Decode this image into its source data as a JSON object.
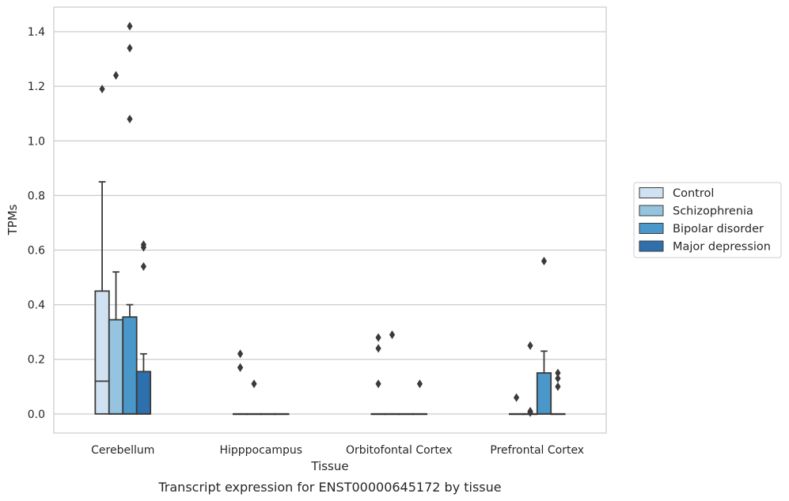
{
  "caption": "Transcript expression for ENST00000645172 by tissue",
  "chart_data": {
    "type": "box",
    "xlabel": "Tissue",
    "ylabel": "TPMs",
    "ylim": [
      -0.07,
      1.49
    ],
    "yticks": [
      0.0,
      0.2,
      0.4,
      0.6,
      0.8,
      1.0,
      1.2,
      1.4
    ],
    "ytick_labels": [
      "0.0",
      "0.2",
      "0.4",
      "0.6",
      "0.8",
      "1.0",
      "1.2",
      "1.4"
    ],
    "grid": true,
    "legend_position": "right",
    "categories": [
      "Cerebellum",
      "Hipppocampus",
      "Orbitofontal Cortex",
      "Prefrontal Cortex"
    ],
    "series": [
      {
        "name": "Control",
        "color": "#d0e1f2",
        "boxes": [
          {
            "q1": 0.0,
            "median": 0.12,
            "q3": 0.45,
            "whisker_low": 0.0,
            "whisker_high": 0.85,
            "outliers": [
              1.19
            ]
          },
          {
            "q1": 0.0,
            "median": 0.0,
            "q3": 0.0,
            "whisker_low": 0.0,
            "whisker_high": 0.0,
            "outliers": [
              0.22,
              0.17,
              0.17
            ]
          },
          {
            "q1": 0.0,
            "median": 0.0,
            "q3": 0.0,
            "whisker_low": 0.0,
            "whisker_high": 0.0,
            "outliers": [
              0.28,
              0.24,
              0.11
            ]
          },
          {
            "q1": 0.0,
            "median": 0.0,
            "q3": 0.0,
            "whisker_low": 0.0,
            "whisker_high": 0.0,
            "outliers": [
              0.06
            ]
          }
        ]
      },
      {
        "name": "Schizophrenia",
        "color": "#94c4df",
        "boxes": [
          {
            "q1": 0.0,
            "median": 0.0,
            "q3": 0.345,
            "whisker_low": 0.0,
            "whisker_high": 0.52,
            "outliers": [
              1.24
            ]
          },
          {
            "q1": 0.0,
            "median": 0.0,
            "q3": 0.0,
            "whisker_low": 0.0,
            "whisker_high": 0.0,
            "outliers": [
              0.11
            ]
          },
          {
            "q1": 0.0,
            "median": 0.0,
            "q3": 0.0,
            "whisker_low": 0.0,
            "whisker_high": 0.0,
            "outliers": [
              0.29
            ]
          },
          {
            "q1": 0.0,
            "median": 0.0,
            "q3": 0.0,
            "whisker_low": 0.0,
            "whisker_high": 0.0,
            "outliers": [
              0.25,
              0.01,
              0.005
            ]
          }
        ]
      },
      {
        "name": "Bipolar disorder",
        "color": "#4a98c9",
        "boxes": [
          {
            "q1": 0.0,
            "median": 0.0,
            "q3": 0.355,
            "whisker_low": 0.0,
            "whisker_high": 0.4,
            "outliers": [
              1.42,
              1.34,
              1.08
            ]
          },
          {
            "q1": 0.0,
            "median": 0.0,
            "q3": 0.0,
            "whisker_low": 0.0,
            "whisker_high": 0.0,
            "outliers": []
          },
          {
            "q1": 0.0,
            "median": 0.0,
            "q3": 0.0,
            "whisker_low": 0.0,
            "whisker_high": 0.0,
            "outliers": []
          },
          {
            "q1": 0.0,
            "median": 0.0,
            "q3": 0.15,
            "whisker_low": 0.0,
            "whisker_high": 0.23,
            "outliers": [
              0.56
            ]
          }
        ]
      },
      {
        "name": "Major depression",
        "color": "#2e6fae",
        "boxes": [
          {
            "q1": 0.0,
            "median": 0.0,
            "q3": 0.155,
            "whisker_low": 0.0,
            "whisker_high": 0.22,
            "outliers": [
              0.62,
              0.61,
              0.54
            ]
          },
          {
            "q1": 0.0,
            "median": 0.0,
            "q3": 0.0,
            "whisker_low": 0.0,
            "whisker_high": 0.0,
            "outliers": []
          },
          {
            "q1": 0.0,
            "median": 0.0,
            "q3": 0.0,
            "whisker_low": 0.0,
            "whisker_high": 0.0,
            "outliers": [
              0.11
            ]
          },
          {
            "q1": 0.0,
            "median": 0.0,
            "q3": 0.0,
            "whisker_low": 0.0,
            "whisker_high": 0.0,
            "outliers": [
              0.15,
              0.13,
              0.1
            ]
          }
        ]
      }
    ]
  }
}
